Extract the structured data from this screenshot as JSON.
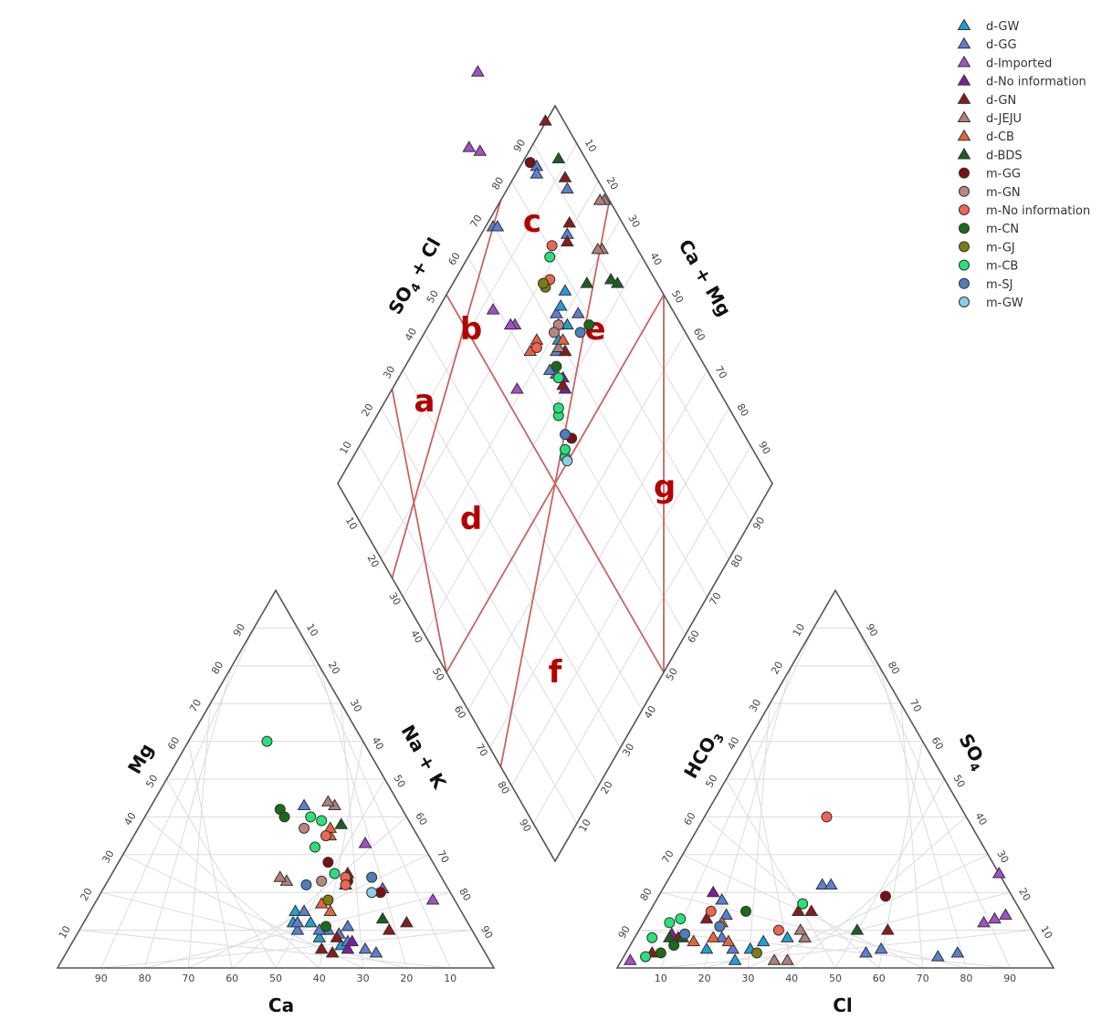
{
  "chart_data": {
    "type": "scatter",
    "subtype": "piper-diagram",
    "ticks": [
      "10",
      "20",
      "30",
      "40",
      "50",
      "60",
      "70",
      "80",
      "90"
    ],
    "axes": {
      "cation_bottom": "Ca",
      "cation_left": "Mg",
      "cation_right": "Na + K",
      "anion_bottom": "Cl",
      "anion_left": "HCO3",
      "anion_right": "SO4",
      "diamond_upper_left": "SO4 + Cl",
      "diamond_upper_right": "Ca + Mg"
    },
    "zones": [
      "a",
      "b",
      "c",
      "d",
      "e",
      "f",
      "g"
    ],
    "grid": true,
    "legend_position": "top-right",
    "series": [
      {
        "name": "d-GW",
        "marker": "triangle",
        "color": "#1f9fd6",
        "cation": [
          [
            40,
            12
          ],
          [
            36,
            12
          ],
          [
            34,
            10
          ],
          [
            36,
            8
          ],
          [
            32,
            6
          ],
          [
            38,
            15
          ]
        ],
        "anion": [
          [
            26,
            2
          ],
          [
            28,
            5
          ],
          [
            35,
            8
          ],
          [
            18,
            5
          ],
          [
            30,
            7
          ]
        ]
      },
      {
        "name": "d-GG",
        "marker": "triangle",
        "color": "#5b7fd1",
        "cation": [
          [
            22,
            43
          ],
          [
            40,
            10
          ],
          [
            39,
            12
          ],
          [
            36,
            15
          ],
          [
            33,
            10
          ],
          [
            31,
            9
          ],
          [
            30,
            7
          ],
          [
            27,
            5
          ],
          [
            25,
            4
          ],
          [
            35,
            10
          ],
          [
            28,
            11
          ]
        ],
        "anion": [
          [
            15,
            18
          ],
          [
            18,
            14
          ],
          [
            36,
            22
          ],
          [
            38,
            22
          ],
          [
            55,
            4
          ],
          [
            58,
            5
          ],
          [
            72,
            3
          ],
          [
            76,
            4
          ],
          [
            24,
            5
          ],
          [
            20,
            8
          ]
        ]
      },
      {
        "name": "d-Imported",
        "marker": "triangle",
        "color": "#a54ec7",
        "cation": [
          [
            13,
            33
          ],
          [
            15,
            21
          ],
          [
            5,
            18
          ]
        ],
        "anion": [
          [
            2,
            2
          ],
          [
            75,
            25
          ],
          [
            82,
            14
          ],
          [
            78,
            12
          ],
          [
            80,
            13
          ]
        ]
      },
      {
        "name": "d-No information",
        "marker": "triangle",
        "color": "#7a1fa2",
        "cation": [
          [
            31,
            5
          ],
          [
            29,
            7
          ]
        ],
        "anion": [
          [
            12,
            20
          ],
          [
            8,
            9
          ]
        ]
      },
      {
        "name": "d-GN",
        "marker": "triangle",
        "color": "#8b1a1a",
        "cation": [
          [
            21,
            25
          ],
          [
            14,
            12
          ],
          [
            19,
            10
          ],
          [
            32,
            8
          ],
          [
            35,
            4
          ],
          [
            37,
            5
          ]
        ],
        "anion": [
          [
            14,
            13
          ],
          [
            10,
            8
          ],
          [
            6,
            4
          ],
          [
            34,
            15
          ],
          [
            37,
            15
          ],
          [
            57,
            10
          ]
        ]
      },
      {
        "name": "d-JEJU",
        "marker": "triangle",
        "color": "#b07f7a",
        "cation": [
          [
            15,
            43
          ],
          [
            16,
            44
          ],
          [
            36,
            23
          ],
          [
            37,
            24
          ]
        ],
        "anion": [
          [
            39,
            8
          ],
          [
            37,
            10
          ],
          [
            38,
            2
          ],
          [
            35,
            2
          ]
        ]
      },
      {
        "name": "d-CB",
        "marker": "triangle",
        "color": "#e8653a",
        "cation": [
          [
            20,
            35
          ],
          [
            19,
            37
          ],
          [
            30,
            15
          ],
          [
            31,
            17
          ]
        ],
        "anion": [
          [
            18,
            8
          ],
          [
            22,
            7
          ],
          [
            14,
            7
          ],
          [
            18,
            12
          ]
        ]
      },
      {
        "name": "d-BDS",
        "marker": "triangle",
        "color": "#1b5e20",
        "cation": [
          [
            16,
            38
          ],
          [
            19,
            13
          ],
          [
            23,
            22
          ]
        ],
        "anion": [
          [
            50,
            10
          ],
          [
            8,
            8
          ],
          [
            11,
            8
          ]
        ]
      },
      {
        "name": "m-GG",
        "marker": "circle",
        "color": "#7a1010",
        "cation": [
          [
            24,
            28
          ],
          [
            22,
            23
          ],
          [
            16,
            20
          ]
        ],
        "anion": [
          [
            52,
            19
          ]
        ]
      },
      {
        "name": "m-GN",
        "marker": "circle",
        "color": "#b8877f",
        "cation": [
          [
            25,
            37
          ],
          [
            28,
            23
          ]
        ],
        "anion": []
      },
      {
        "name": "m-No information",
        "marker": "circle",
        "color": "#f06450",
        "cation": [
          [
            22,
            24
          ],
          [
            23,
            22
          ],
          [
            21,
            35
          ]
        ],
        "anion": [
          [
            28,
            40
          ],
          [
            32,
            10
          ],
          [
            14,
            15
          ]
        ]
      },
      {
        "name": "m-CN",
        "marker": "circle",
        "color": "#1a6b1a",
        "cation": [
          [
            28,
            42
          ],
          [
            28,
            40
          ],
          [
            33,
            11
          ]
        ],
        "anion": [
          [
            22,
            15
          ],
          [
            10,
            6
          ],
          [
            8,
            4
          ]
        ]
      },
      {
        "name": "m-GJ",
        "marker": "circle",
        "color": "#7c7c10",
        "cation": [
          [
            29,
            18
          ]
        ],
        "anion": [
          [
            30,
            4
          ]
        ]
      },
      {
        "name": "m-CB",
        "marker": "circle",
        "color": "#27e27a",
        "cation": [
          [
            22,
            60
          ],
          [
            22,
            40
          ],
          [
            20,
            39
          ],
          [
            25,
            32
          ],
          [
            24,
            25
          ]
        ],
        "anion": [
          [
            34,
            17
          ],
          [
            8,
            13
          ],
          [
            6,
            12
          ],
          [
            4,
            8
          ],
          [
            5,
            3
          ]
        ]
      },
      {
        "name": "m-SJ",
        "marker": "circle",
        "color": "#4a7fc0",
        "cation": [
          [
            32,
            22
          ],
          [
            16,
            24
          ]
        ],
        "anion": [
          [
            18,
            11
          ],
          [
            11,
            9
          ]
        ]
      },
      {
        "name": "m-GW",
        "marker": "circle",
        "color": "#8ccde8",
        "cation": [
          [
            18,
            20
          ]
        ],
        "anion": []
      }
    ],
    "diamond_points": [
      {
        "series": "d-GG",
        "tp": [
          80,
          48
        ]
      },
      {
        "series": "d-GG",
        "tp": [
          79,
          47
        ]
      },
      {
        "series": "d-GG",
        "tp": [
          62,
          46
        ]
      },
      {
        "series": "d-GG",
        "tp": [
          63,
          45
        ]
      },
      {
        "series": "d-GG",
        "tp": [
          58,
          36
        ]
      },
      {
        "series": "d-GG",
        "tp": [
          64,
          30
        ]
      },
      {
        "series": "d-GG",
        "tp": [
          77,
          22
        ]
      },
      {
        "series": "d-GG",
        "tp": [
          72,
          17
        ]
      },
      {
        "series": "d-GG",
        "tp": [
          80,
          15
        ]
      },
      {
        "series": "d-GG",
        "tp": [
          82,
          17
        ]
      },
      {
        "series": "d-GG",
        "tp": [
          85,
          14
        ]
      },
      {
        "series": "d-GG",
        "tp": [
          86,
          16
        ]
      },
      {
        "series": "d-GW",
        "tp": [
          72,
          23
        ]
      },
      {
        "series": "d-GW",
        "tp": [
          75,
          22
        ]
      },
      {
        "series": "d-GW",
        "tp": [
          80,
          18
        ]
      },
      {
        "series": "d-GW",
        "tp": [
          76,
          18
        ]
      },
      {
        "series": "d-Imported",
        "tp": [
          88,
          30
        ]
      },
      {
        "series": "d-Imported",
        "tp": [
          89,
          31
        ]
      },
      {
        "series": "d-Imported",
        "tp": [
          96,
          21
        ]
      },
      {
        "series": "d-Imported",
        "tp": [
          91,
          37
        ]
      },
      {
        "series": "d-Imported",
        "tp": [
          75,
          64
        ]
      },
      {
        "series": "d-Imported",
        "tp": [
          73,
          61
        ]
      },
      {
        "series": "d-Imported",
        "tp": [
          63,
          72
        ]
      },
      {
        "series": "d-No information",
        "tp": [
          85,
          10
        ]
      },
      {
        "series": "d-No information",
        "tp": [
          84,
          12
        ]
      },
      {
        "series": "d-GN",
        "tp": [
          54,
          50
        ]
      },
      {
        "series": "d-GN",
        "tp": [
          57,
          38
        ]
      },
      {
        "series": "d-GN",
        "tp": [
          62,
          31
        ]
      },
      {
        "series": "d-GN",
        "tp": [
          65,
          29
        ]
      },
      {
        "series": "d-GN",
        "tp": [
          78,
          20
        ]
      },
      {
        "series": "d-GN",
        "tp": [
          85,
          11
        ]
      },
      {
        "series": "d-GN",
        "tp": [
          80,
          15
        ]
      },
      {
        "series": "d-JEJU",
        "tp": [
          58,
          20
        ]
      },
      {
        "series": "d-JEJU",
        "tp": [
          59,
          21
        ]
      },
      {
        "series": "d-JEJU",
        "tp": [
          51,
          26
        ]
      },
      {
        "series": "d-JEJU",
        "tp": [
          52,
          27
        ]
      },
      {
        "series": "d-JEJU",
        "tp": [
          81,
          17
        ]
      },
      {
        "series": "d-CB",
        "tp": [
          85,
          23
        ]
      },
      {
        "series": "d-CB",
        "tp": [
          88,
          23
        ]
      },
      {
        "series": "d-CB",
        "tp": [
          79,
          17
        ]
      },
      {
        "series": "d-BDS",
        "tp": [
          66,
          19
        ]
      },
      {
        "series": "d-BDS",
        "tp": [
          56,
          42
        ]
      },
      {
        "series": "d-BDS",
        "tp": [
          60,
          14
        ]
      },
      {
        "series": "d-BDS",
        "tp": [
          59,
          12
        ]
      },
      {
        "series": "m-GG",
        "tp": [
          90,
          2
        ]
      },
      {
        "series": "m-GG",
        "tp": [
          63,
          48
        ]
      },
      {
        "series": "m-GN",
        "tp": [
          78,
          20
        ]
      },
      {
        "series": "m-GN",
        "tp": [
          80,
          20
        ]
      },
      {
        "series": "m-No information",
        "tp": [
          86,
          22
        ]
      },
      {
        "series": "m-No information",
        "tp": [
          69,
          32
        ]
      },
      {
        "series": "m-No information",
        "tp": [
          74,
          28
        ]
      },
      {
        "series": "m-CN",
        "tp": [
          84,
          15
        ]
      },
      {
        "series": "m-CN",
        "tp": [
          71,
          13
        ]
      },
      {
        "series": "m-GJ",
        "tp": [
          76,
          28
        ]
      },
      {
        "series": "m-GJ",
        "tp": [
          76,
          29
        ]
      },
      {
        "series": "m-CB",
        "tp": [
          71,
          31
        ]
      },
      {
        "series": "m-CB",
        "tp": [
          90,
          8
        ]
      },
      {
        "series": "m-CB",
        "tp": [
          89,
          9
        ]
      },
      {
        "series": "m-CB",
        "tp": [
          94,
          1
        ]
      },
      {
        "series": "m-CB",
        "tp": [
          93,
          2
        ]
      },
      {
        "series": "m-CB",
        "tp": [
          85,
          13
        ]
      },
      {
        "series": "m-SJ",
        "tp": [
          91,
          4
        ]
      },
      {
        "series": "m-SJ",
        "tp": [
          74,
          14
        ]
      },
      {
        "series": "m-GW",
        "tp": [
          94,
          0
        ]
      }
    ]
  }
}
